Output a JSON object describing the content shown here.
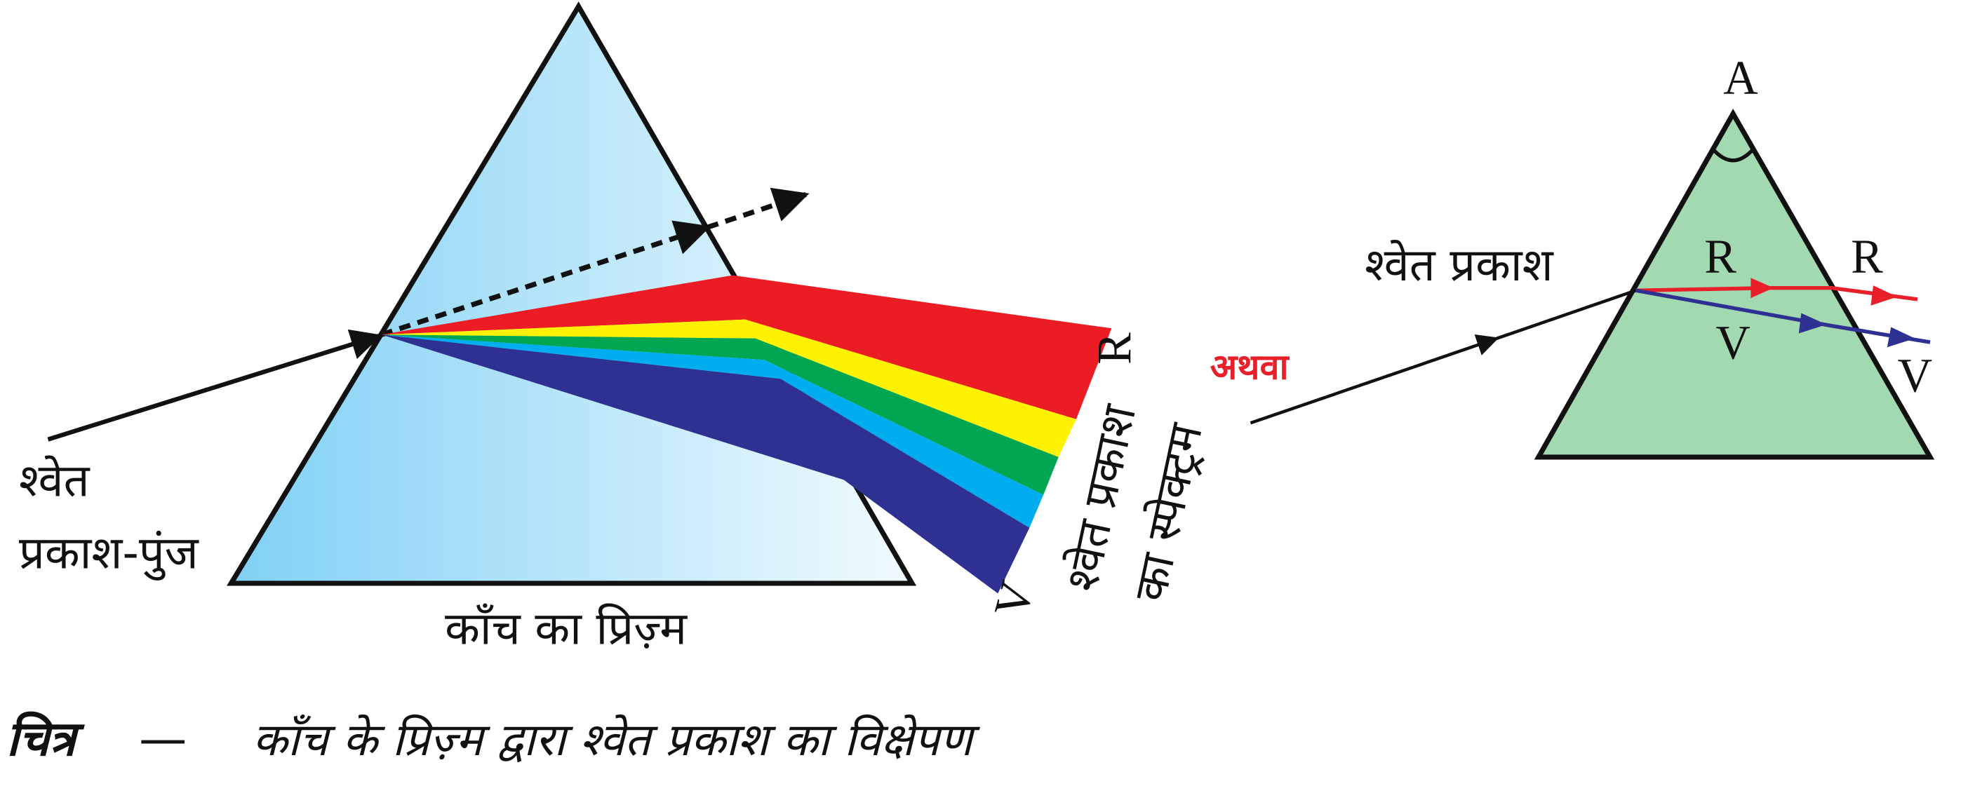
{
  "left_prism": {
    "incident_label": [
      "श्वेत",
      "प्रकाश-पुंज"
    ],
    "prism_label": "काँच का प्रिज़्म",
    "spectrum_ends": {
      "top": "R",
      "bottom": "V"
    },
    "spectrum_label": [
      "श्वेत प्रकाश",
      "का स्पेक्ट्रम"
    ]
  },
  "separator": "अथवा",
  "right_prism": {
    "apex": "A",
    "incident_label": "श्वेत प्रकाश",
    "rays_inside": [
      "R",
      "V"
    ],
    "rays_outside": [
      "R",
      "V"
    ]
  },
  "caption": {
    "prefix": "चित्र",
    "dash": "—",
    "text": "काँच के प्रिज़्म द्वारा श्वेत प्रकाश का विक्षेपण"
  }
}
